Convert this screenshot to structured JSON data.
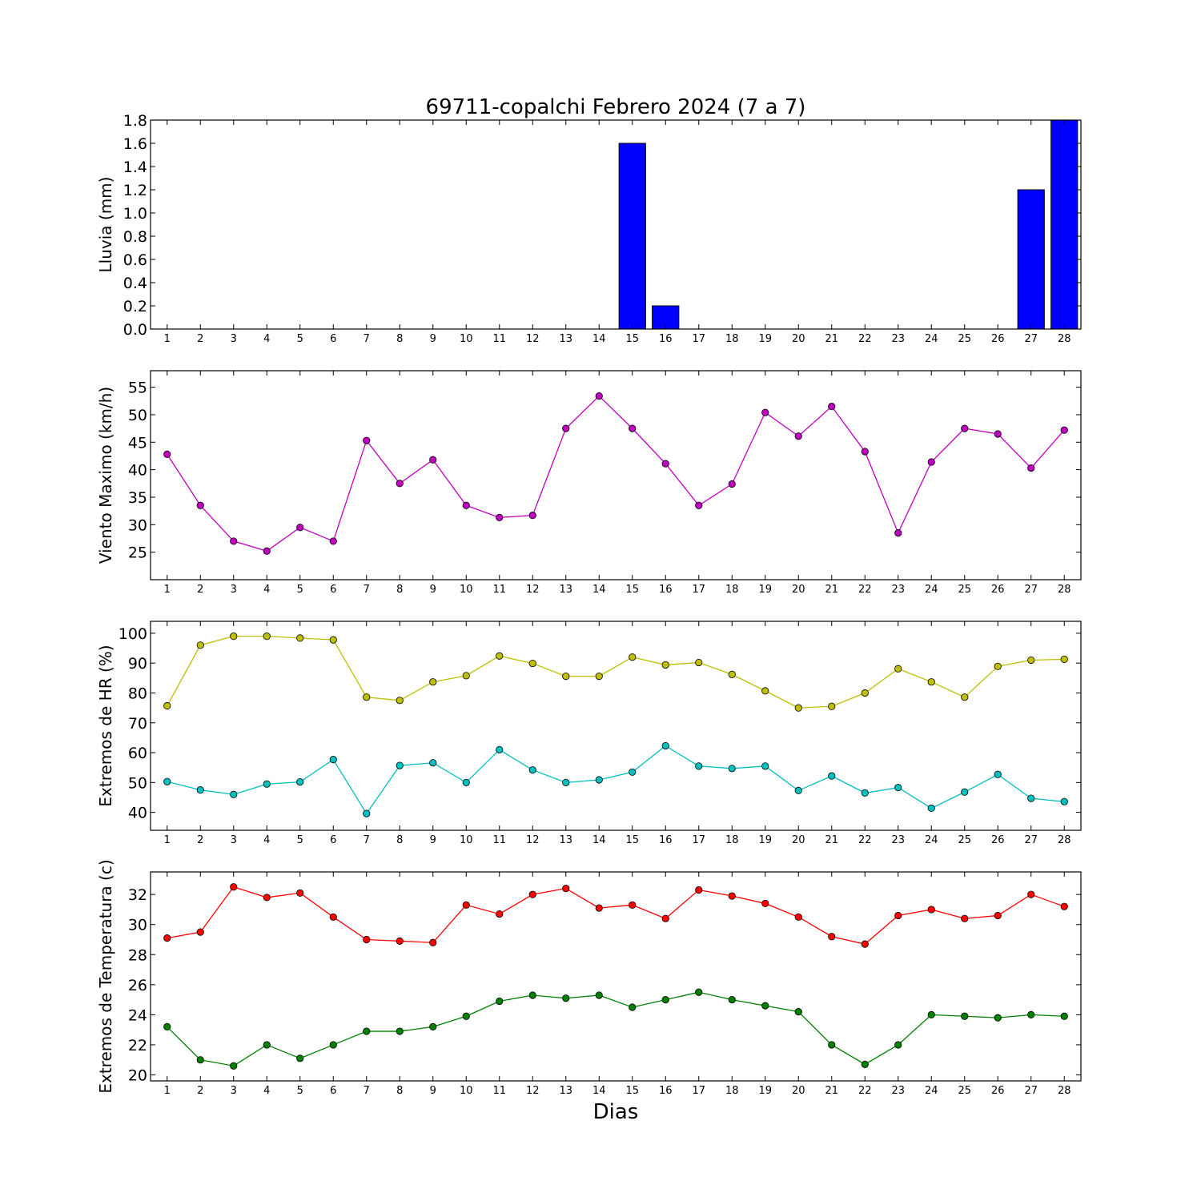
{
  "figure": {
    "title": "69711-copalchi Febrero 2024  (7 a 7)",
    "xlabel": "Dias"
  },
  "chart_data": [
    {
      "type": "bar",
      "ylabel": "Lluvia (mm)",
      "x": [
        1,
        2,
        3,
        4,
        5,
        6,
        7,
        8,
        9,
        10,
        11,
        12,
        13,
        14,
        15,
        16,
        17,
        18,
        19,
        20,
        21,
        22,
        23,
        24,
        25,
        26,
        27,
        28
      ],
      "values": [
        0,
        0,
        0,
        0,
        0,
        0,
        0,
        0,
        0,
        0,
        0,
        0,
        0,
        0,
        1.6,
        0.2,
        0,
        0,
        0,
        0,
        0,
        0,
        0,
        0,
        0,
        0,
        1.2,
        1.8
      ],
      "ylim": [
        0,
        1.8
      ],
      "yticks": [
        0.0,
        0.2,
        0.4,
        0.6,
        0.8,
        1.0,
        1.2,
        1.4,
        1.6,
        1.8
      ],
      "ytick_labels": [
        "0.0",
        "0.2",
        "0.4",
        "0.6",
        "0.8",
        "1.0",
        "1.2",
        "1.4",
        "1.6",
        "1.8"
      ],
      "color": "#0000ff"
    },
    {
      "type": "line",
      "ylabel": "Viento Maximo (km/h)",
      "x": [
        1,
        2,
        3,
        4,
        5,
        6,
        7,
        8,
        9,
        10,
        11,
        12,
        13,
        14,
        15,
        16,
        17,
        18,
        19,
        20,
        21,
        22,
        23,
        24,
        25,
        26,
        27,
        28
      ],
      "series": [
        {
          "color": "#bf00bf",
          "values": [
            42.8,
            33.5,
            27.0,
            25.2,
            29.5,
            27.0,
            45.3,
            37.5,
            41.8,
            33.5,
            31.3,
            31.7,
            47.5,
            53.4,
            47.5,
            41.1,
            33.5,
            37.4,
            50.4,
            46.1,
            51.5,
            43.3,
            28.5,
            41.4,
            47.5,
            46.5,
            40.3,
            47.2
          ]
        }
      ],
      "ylim": [
        20,
        58
      ],
      "yticks": [
        25,
        30,
        35,
        40,
        45,
        50,
        55
      ],
      "ytick_labels": [
        "25",
        "30",
        "35",
        "40",
        "45",
        "50",
        "55"
      ]
    },
    {
      "type": "line",
      "ylabel": "Extremos de HR (%)",
      "x": [
        1,
        2,
        3,
        4,
        5,
        6,
        7,
        8,
        9,
        10,
        11,
        12,
        13,
        14,
        15,
        16,
        17,
        18,
        19,
        20,
        21,
        22,
        23,
        24,
        25,
        26,
        27,
        28
      ],
      "series": [
        {
          "color": "#bfbf00",
          "values": [
            75.7,
            96.0,
            99.0,
            99.0,
            98.4,
            97.8,
            78.6,
            77.5,
            83.7,
            85.8,
            92.4,
            89.9,
            85.6,
            85.6,
            92.0,
            89.4,
            90.2,
            86.2,
            80.7,
            75.0,
            75.5,
            80.0,
            88.1,
            83.7,
            78.6,
            88.9,
            91.0,
            91.3
          ]
        },
        {
          "color": "#00bfbf",
          "values": [
            50.3,
            47.5,
            46.0,
            49.5,
            50.2,
            57.7,
            39.6,
            55.7,
            56.6,
            50.0,
            61.0,
            54.2,
            50.0,
            50.9,
            53.5,
            62.3,
            55.5,
            54.7,
            55.5,
            47.3,
            52.2,
            46.5,
            48.3,
            41.4,
            46.8,
            52.7,
            44.7,
            43.6
          ]
        }
      ],
      "ylim": [
        34,
        104
      ],
      "yticks": [
        40,
        50,
        60,
        70,
        80,
        90,
        100
      ],
      "ytick_labels": [
        "40",
        "50",
        "60",
        "70",
        "80",
        "90",
        "100"
      ]
    },
    {
      "type": "line",
      "ylabel": "Extremos de Temperatura (c)",
      "x": [
        1,
        2,
        3,
        4,
        5,
        6,
        7,
        8,
        9,
        10,
        11,
        12,
        13,
        14,
        15,
        16,
        17,
        18,
        19,
        20,
        21,
        22,
        23,
        24,
        25,
        26,
        27,
        28
      ],
      "series": [
        {
          "color": "#ff0000",
          "values": [
            29.1,
            29.5,
            32.5,
            31.8,
            32.1,
            30.5,
            29.0,
            28.9,
            28.8,
            31.3,
            30.7,
            32.0,
            32.4,
            31.1,
            31.3,
            30.4,
            32.3,
            31.9,
            31.4,
            30.5,
            29.2,
            28.7,
            30.6,
            31.0,
            30.4,
            30.6,
            32.0,
            31.2
          ]
        },
        {
          "color": "#008000",
          "values": [
            23.2,
            21.0,
            20.6,
            22.0,
            21.1,
            22.0,
            22.9,
            22.9,
            23.2,
            23.9,
            24.9,
            25.3,
            25.1,
            25.3,
            24.5,
            25.0,
            25.5,
            25.0,
            24.6,
            24.2,
            22.0,
            20.7,
            22.0,
            24.0,
            23.9,
            23.8,
            24.0,
            23.9
          ]
        }
      ],
      "ylim": [
        19.6,
        33.5
      ],
      "yticks": [
        20,
        22,
        24,
        26,
        28,
        30,
        32
      ],
      "ytick_labels": [
        "20",
        "22",
        "24",
        "26",
        "28",
        "30",
        "32"
      ]
    }
  ]
}
